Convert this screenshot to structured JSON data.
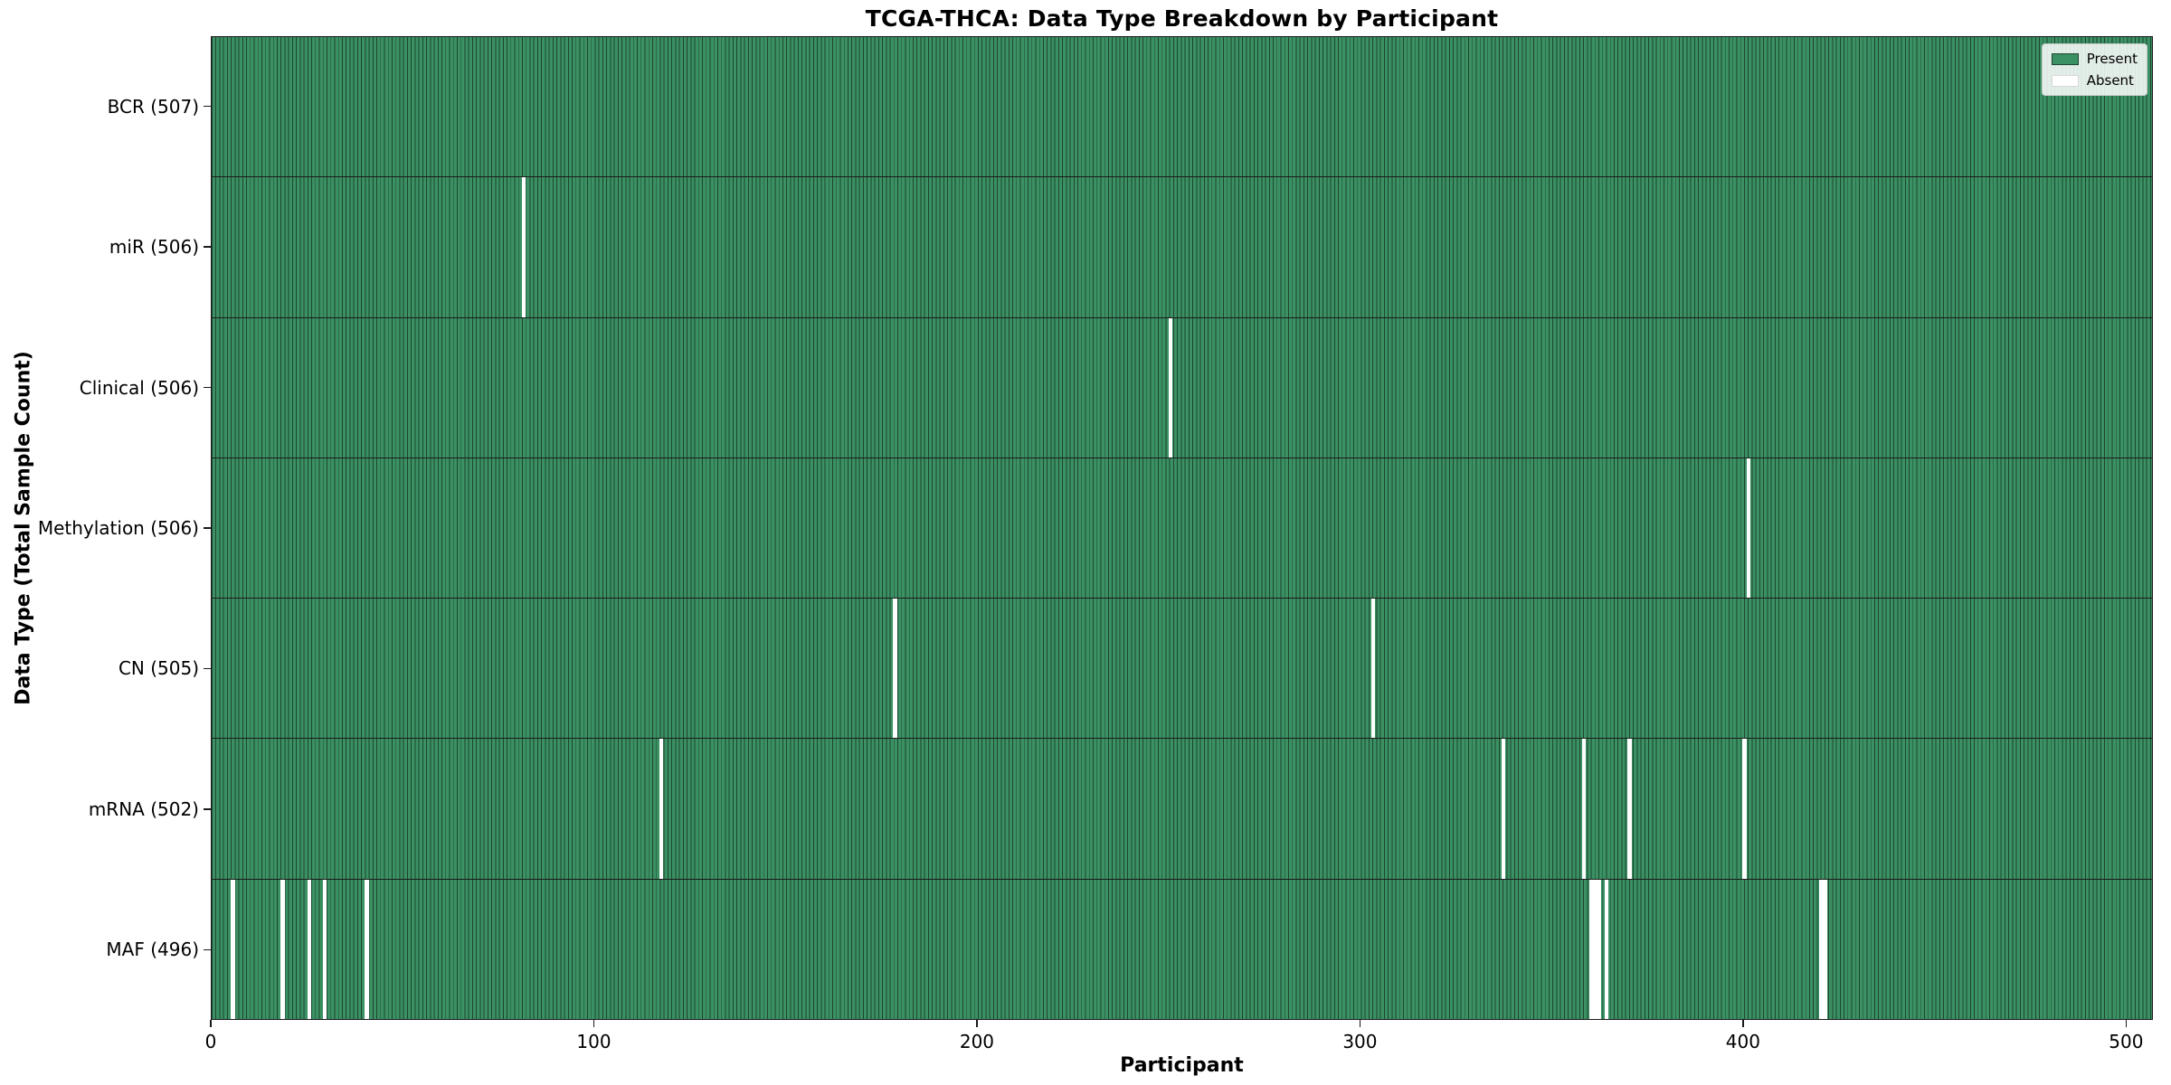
{
  "chart_data": {
    "type": "heatmap",
    "title": "TCGA-THCA: Data Type Breakdown by Participant",
    "xlabel": "Participant",
    "ylabel": "Data Type (Total Sample Count)",
    "x_ticks": [
      0,
      100,
      200,
      300,
      400,
      500
    ],
    "xlim": [
      0,
      507
    ],
    "n_participants": 507,
    "grid": false,
    "legend": {
      "position": "upper right",
      "entries": [
        {
          "label": "Present",
          "swatch": "present"
        },
        {
          "label": "Absent",
          "swatch": "absent"
        }
      ]
    },
    "rows": [
      {
        "data_type": "BCR",
        "label": "BCR (507)",
        "present_count": 507,
        "absent_participants": []
      },
      {
        "data_type": "miR",
        "label": "miR (506)",
        "present_count": 506,
        "absent_participants": [
          81
        ]
      },
      {
        "data_type": "Clinical",
        "label": "Clinical (506)",
        "present_count": 506,
        "absent_participants": [
          250
        ]
      },
      {
        "data_type": "Methylation",
        "label": "Methylation (506)",
        "present_count": 506,
        "absent_participants": [
          401
        ]
      },
      {
        "data_type": "CN",
        "label": "CN (505)",
        "present_count": 505,
        "absent_participants": [
          178,
          303
        ]
      },
      {
        "data_type": "mRNA",
        "label": "mRNA (502)",
        "present_count": 502,
        "absent_participants": [
          117,
          337,
          358,
          370,
          400
        ]
      },
      {
        "data_type": "MAF",
        "label": "MAF (496)",
        "present_count": 496,
        "absent_participants": [
          5,
          18,
          25,
          29,
          40,
          360,
          361,
          362,
          364,
          420,
          421
        ]
      }
    ],
    "colors": {
      "present": "#3b9163",
      "bar_edge": "#1d4530",
      "absent": "#ffffff",
      "row_divider": "#1c1c1c",
      "axis": "#1a1a1a"
    }
  }
}
